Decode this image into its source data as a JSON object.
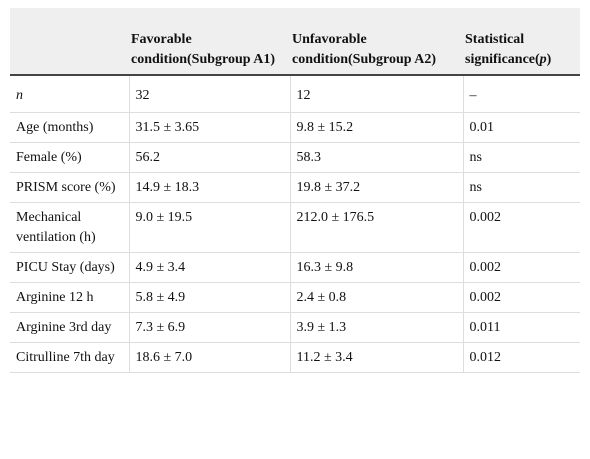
{
  "header": {
    "col1": "",
    "col2": "Favorable condition(Subgroup A1)",
    "col3": "Unfavorable condition(Subgroup A2)",
    "col4_prefix": "Statistical significance(",
    "col4_p": "p",
    "col4_suffix": ")"
  },
  "rows": [
    {
      "label": "n",
      "a1": "32",
      "a2": "12",
      "p": "–"
    },
    {
      "label": "Age (months)",
      "a1": "31.5 ± 3.65",
      "a2": "9.8 ± 15.2",
      "p": "0.01"
    },
    {
      "label": "Female (%)",
      "a1": "56.2",
      "a2": "58.3",
      "p": "ns"
    },
    {
      "label": "PRISM score (%)",
      "a1": "14.9 ± 18.3",
      "a2": "19.8 ± 37.2",
      "p": "ns"
    },
    {
      "label": "Mechanical ventilation (h)",
      "a1": "9.0 ± 19.5",
      "a2": "212.0 ± 176.5",
      "p": "0.002"
    },
    {
      "label": "PICU Stay (days)",
      "a1": "4.9 ± 3.4",
      "a2": "16.3 ± 9.8",
      "p": "0.002"
    },
    {
      "label": "Arginine 12 h",
      "a1": "5.8 ± 4.9",
      "a2": "2.4 ± 0.8",
      "p": "0.002"
    },
    {
      "label": "Arginine 3rd day",
      "a1": "7.3 ± 6.9",
      "a2": "3.9 ± 1.3",
      "p": "0.011"
    },
    {
      "label": "Citrulline 7th day",
      "a1": "18.6 ± 7.0",
      "a2": "11.2 ± 3.4",
      "p": "0.012"
    }
  ]
}
